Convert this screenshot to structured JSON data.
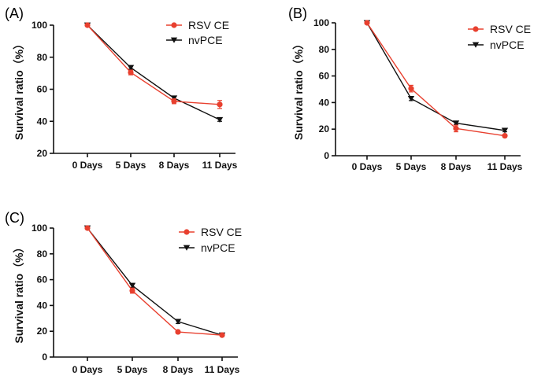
{
  "colors": {
    "rsv": "#e8402f",
    "nvpce": "#111111",
    "axis": "#111111"
  },
  "chart_data": [
    {
      "type": "line",
      "panel": "(A)",
      "ylabel": "Survival ratio（%）",
      "xlabel": "",
      "categories": [
        "0 Days",
        "5 Days",
        "8 Days",
        "11 Days"
      ],
      "ylim": [
        20,
        100
      ],
      "yticks": [
        20,
        40,
        60,
        80,
        100
      ],
      "legend_position": "top-right",
      "series": [
        {
          "name": "RSV CE",
          "marker": "circle",
          "values": [
            100,
            70.5,
            52.5,
            50.5
          ],
          "errors": [
            0,
            1.5,
            1.5,
            2.5
          ]
        },
        {
          "name": "nvPCE",
          "marker": "triangle-down",
          "values": [
            100,
            73.5,
            54.5,
            41
          ],
          "errors": [
            0,
            1,
            1,
            1
          ]
        }
      ]
    },
    {
      "type": "line",
      "panel": "(B)",
      "ylabel": "Survival ratio（%）",
      "xlabel": "",
      "categories": [
        "0 Days",
        "5 Days",
        "8 Days",
        "11 Days"
      ],
      "ylim": [
        0,
        100
      ],
      "yticks": [
        0,
        20,
        40,
        60,
        80,
        100
      ],
      "legend_position": "top-right",
      "series": [
        {
          "name": "RSV CE",
          "marker": "circle",
          "values": [
            100,
            50.5,
            20.5,
            15
          ],
          "errors": [
            0,
            2.5,
            2.5,
            1
          ]
        },
        {
          "name": "nvPCE",
          "marker": "triangle-down",
          "values": [
            100,
            43,
            24.5,
            19
          ],
          "errors": [
            0,
            1.5,
            1,
            1
          ]
        }
      ]
    },
    {
      "type": "line",
      "panel": "(C)",
      "ylabel": "Survival ratio（%）",
      "xlabel": "",
      "categories": [
        "0 Days",
        "5 Days",
        "8 Days",
        "11 Days"
      ],
      "ylim": [
        0,
        100
      ],
      "yticks": [
        0,
        20,
        40,
        60,
        80,
        100
      ],
      "legend_position": "top-right",
      "series": [
        {
          "name": "RSV CE",
          "marker": "circle",
          "values": [
            100,
            51.5,
            19.5,
            17
          ],
          "errors": [
            0,
            2,
            1,
            1
          ]
        },
        {
          "name": "nvPCE",
          "marker": "triangle-down",
          "values": [
            100,
            55.5,
            27.5,
            17
          ],
          "errors": [
            0,
            1.5,
            1.5,
            1
          ]
        }
      ]
    }
  ]
}
